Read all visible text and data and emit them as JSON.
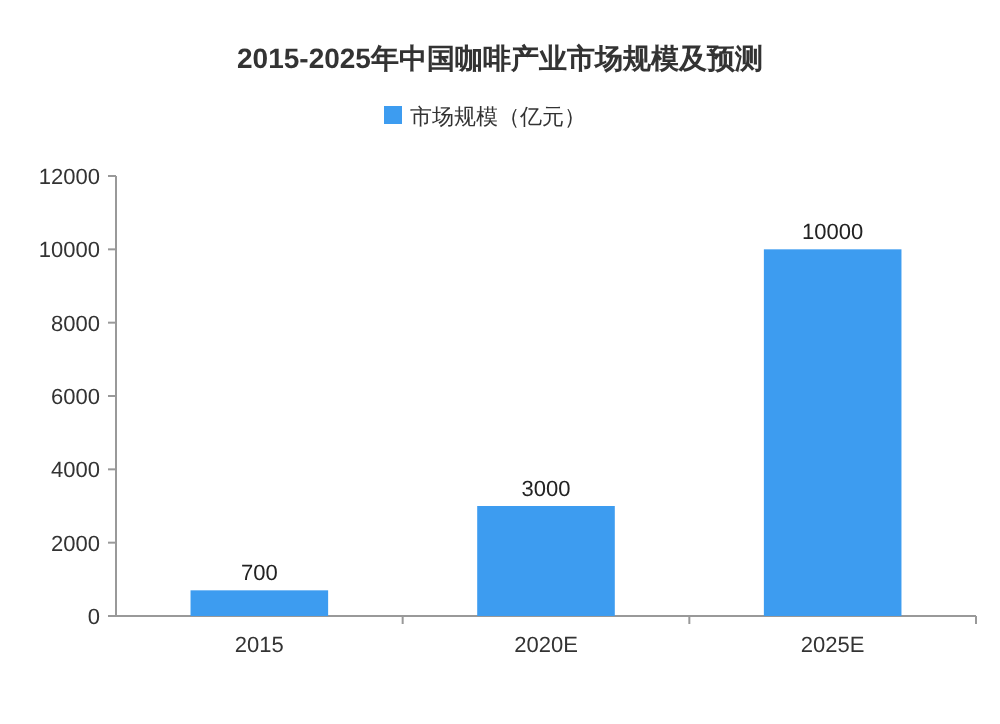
{
  "chart_data": {
    "type": "bar",
    "title": "2015-2025年中国咖啡产业市场规模及预测",
    "categories": [
      "2015",
      "2020E",
      "2025E"
    ],
    "series": [
      {
        "name": "市场规模（亿元）",
        "color": "#3d9cf0",
        "values": [
          700,
          3000,
          10000
        ]
      }
    ],
    "ylim": [
      0,
      12000
    ],
    "yticks": [
      0,
      2000,
      4000,
      6000,
      8000,
      10000,
      12000
    ],
    "data_labels": true,
    "legend": "top",
    "grid": false
  }
}
